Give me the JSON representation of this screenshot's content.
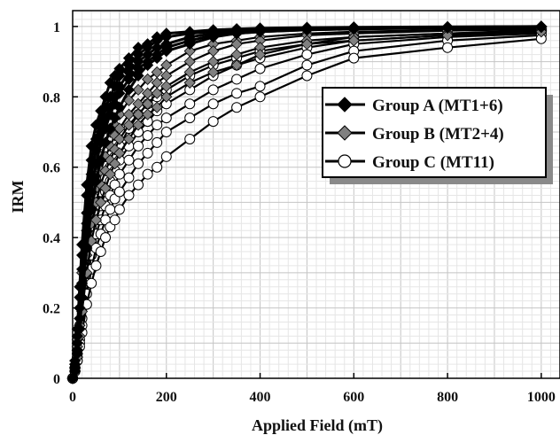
{
  "chart_data": {
    "type": "line",
    "xlabel": "Applied Field (mT)",
    "ylabel": "IRM",
    "xlim": [
      0,
      1040
    ],
    "ylim": [
      0,
      1.045
    ],
    "x_ticks": [
      0,
      200,
      400,
      600,
      800,
      1000
    ],
    "y_ticks": [
      0,
      0.2,
      0.4,
      0.6,
      0.8,
      1
    ],
    "x_tick_labels": [
      "0",
      "200",
      "400",
      "600",
      "800",
      "1000"
    ],
    "y_tick_labels": [
      "0",
      "0.2",
      "0.4",
      "0.6",
      "0.8",
      "1"
    ],
    "grid": true,
    "legend_position": "right",
    "legend": [
      {
        "label": "Group A (MT1+6)",
        "marker": "diamond",
        "color": "#000000"
      },
      {
        "label": "Group B (MT2+4)",
        "marker": "diamond",
        "color": "#808080"
      },
      {
        "label": "Group C (MT11)",
        "marker": "circle",
        "color": "#ffffff"
      }
    ],
    "x": [
      0,
      5,
      10,
      15,
      20,
      30,
      40,
      50,
      60,
      70,
      80,
      90,
      100,
      120,
      140,
      160,
      180,
      200,
      250,
      300,
      350,
      400,
      500,
      600,
      800,
      1000
    ],
    "series": [
      {
        "group": "A",
        "values": [
          0.0,
          0.05,
          0.14,
          0.26,
          0.38,
          0.55,
          0.66,
          0.72,
          0.76,
          0.8,
          0.84,
          0.86,
          0.88,
          0.91,
          0.94,
          0.95,
          0.97,
          0.98,
          0.985,
          0.99,
          0.993,
          0.995,
          0.997,
          0.998,
          0.999,
          1.0
        ]
      },
      {
        "group": "A",
        "values": [
          0.0,
          0.04,
          0.12,
          0.23,
          0.35,
          0.52,
          0.62,
          0.68,
          0.73,
          0.77,
          0.8,
          0.83,
          0.86,
          0.89,
          0.92,
          0.94,
          0.96,
          0.97,
          0.98,
          0.985,
          0.99,
          0.993,
          0.995,
          0.997,
          0.998,
          1.0
        ]
      },
      {
        "group": "A",
        "values": [
          0.0,
          0.03,
          0.1,
          0.2,
          0.31,
          0.47,
          0.58,
          0.65,
          0.7,
          0.74,
          0.77,
          0.8,
          0.83,
          0.87,
          0.9,
          0.92,
          0.94,
          0.95,
          0.97,
          0.98,
          0.985,
          0.99,
          0.993,
          0.995,
          0.997,
          1.0
        ]
      },
      {
        "group": "A",
        "values": [
          0.0,
          0.03,
          0.08,
          0.17,
          0.27,
          0.42,
          0.53,
          0.61,
          0.67,
          0.71,
          0.75,
          0.78,
          0.81,
          0.85,
          0.88,
          0.9,
          0.92,
          0.94,
          0.96,
          0.975,
          0.98,
          0.985,
          0.99,
          0.993,
          0.996,
          0.998
        ]
      },
      {
        "group": "A",
        "values": [
          0.0,
          0.02,
          0.07,
          0.14,
          0.23,
          0.37,
          0.48,
          0.56,
          0.62,
          0.67,
          0.71,
          0.74,
          0.77,
          0.82,
          0.86,
          0.89,
          0.91,
          0.93,
          0.95,
          0.97,
          0.98,
          0.985,
          0.99,
          0.993,
          0.996,
          0.998
        ]
      },
      {
        "group": "B",
        "values": [
          0.0,
          0.04,
          0.11,
          0.2,
          0.3,
          0.44,
          0.53,
          0.59,
          0.63,
          0.67,
          0.7,
          0.72,
          0.75,
          0.79,
          0.82,
          0.85,
          0.87,
          0.89,
          0.93,
          0.95,
          0.96,
          0.97,
          0.98,
          0.985,
          0.99,
          0.993
        ]
      },
      {
        "group": "B",
        "values": [
          0.0,
          0.03,
          0.09,
          0.17,
          0.26,
          0.39,
          0.48,
          0.54,
          0.59,
          0.63,
          0.66,
          0.69,
          0.71,
          0.75,
          0.78,
          0.81,
          0.84,
          0.86,
          0.9,
          0.93,
          0.95,
          0.96,
          0.975,
          0.98,
          0.988,
          0.992
        ]
      },
      {
        "group": "B",
        "values": [
          0.0,
          0.03,
          0.08,
          0.15,
          0.23,
          0.35,
          0.44,
          0.5,
          0.55,
          0.59,
          0.62,
          0.65,
          0.68,
          0.72,
          0.75,
          0.78,
          0.81,
          0.83,
          0.87,
          0.9,
          0.92,
          0.94,
          0.96,
          0.97,
          0.98,
          0.988
        ]
      },
      {
        "group": "B",
        "values": [
          0.0,
          0.02,
          0.06,
          0.12,
          0.19,
          0.3,
          0.39,
          0.45,
          0.5,
          0.54,
          0.58,
          0.61,
          0.64,
          0.68,
          0.72,
          0.75,
          0.77,
          0.8,
          0.84,
          0.87,
          0.89,
          0.92,
          0.95,
          0.96,
          0.975,
          0.985
        ]
      },
      {
        "group": "C",
        "values": [
          0.0,
          0.03,
          0.08,
          0.15,
          0.23,
          0.35,
          0.43,
          0.49,
          0.53,
          0.57,
          0.6,
          0.63,
          0.66,
          0.71,
          0.75,
          0.78,
          0.8,
          0.82,
          0.86,
          0.89,
          0.91,
          0.93,
          0.95,
          0.97,
          0.98,
          0.99
        ]
      },
      {
        "group": "C",
        "values": [
          0.0,
          0.03,
          0.07,
          0.13,
          0.2,
          0.31,
          0.39,
          0.45,
          0.49,
          0.53,
          0.56,
          0.59,
          0.62,
          0.66,
          0.7,
          0.73,
          0.76,
          0.78,
          0.82,
          0.86,
          0.89,
          0.91,
          0.94,
          0.96,
          0.975,
          0.985
        ]
      },
      {
        "group": "C",
        "values": [
          0.0,
          0.02,
          0.06,
          0.11,
          0.17,
          0.27,
          0.35,
          0.41,
          0.45,
          0.49,
          0.52,
          0.55,
          0.58,
          0.62,
          0.66,
          0.69,
          0.72,
          0.74,
          0.78,
          0.82,
          0.85,
          0.88,
          0.92,
          0.95,
          0.97,
          0.98
        ]
      },
      {
        "group": "C",
        "values": [
          0.0,
          0.02,
          0.05,
          0.1,
          0.15,
          0.24,
          0.31,
          0.37,
          0.41,
          0.45,
          0.48,
          0.51,
          0.53,
          0.57,
          0.61,
          0.64,
          0.67,
          0.7,
          0.74,
          0.78,
          0.81,
          0.83,
          0.89,
          0.93,
          0.96,
          0.975
        ]
      },
      {
        "group": "C",
        "values": [
          0.0,
          0.02,
          0.05,
          0.09,
          0.13,
          0.21,
          0.27,
          0.32,
          0.36,
          0.4,
          0.43,
          0.45,
          0.48,
          0.52,
          0.55,
          0.58,
          0.6,
          0.63,
          0.68,
          0.73,
          0.77,
          0.8,
          0.86,
          0.91,
          0.94,
          0.965
        ]
      }
    ]
  }
}
